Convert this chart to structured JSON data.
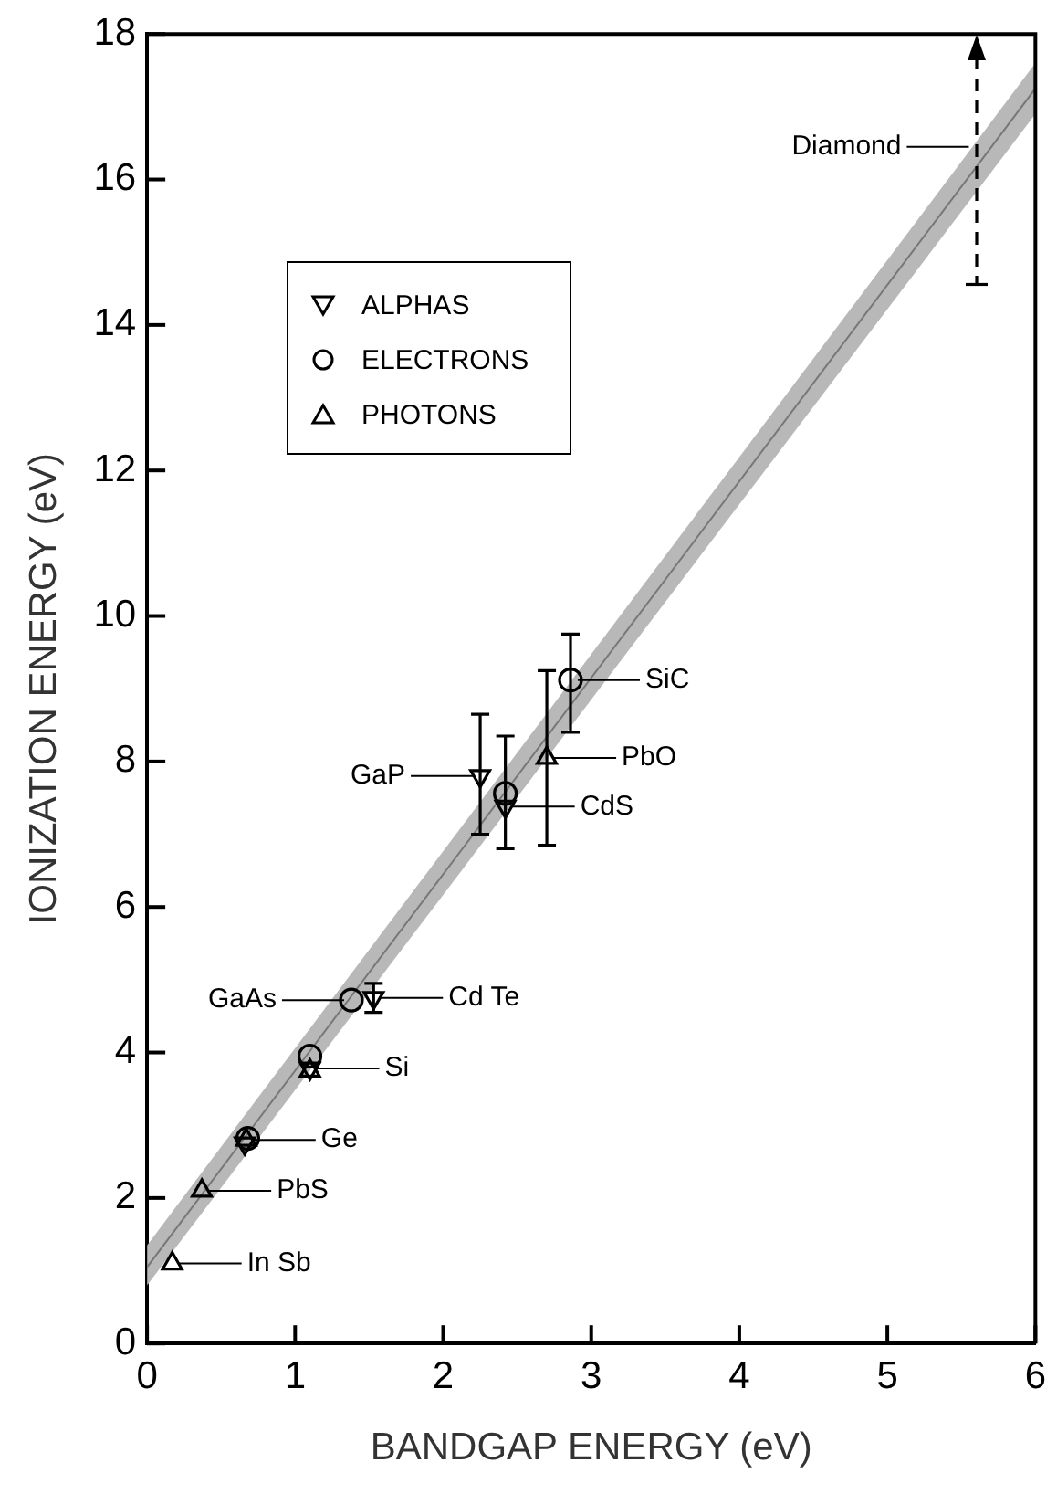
{
  "chart_data": {
    "type": "scatter",
    "xlabel": "BANDGAP ENERGY (eV)",
    "ylabel": "IONIZATION ENERGY (eV)",
    "xlim": [
      0,
      6
    ],
    "xticks": [
      0,
      1,
      2,
      3,
      4,
      5,
      6
    ],
    "ylim": [
      0,
      18
    ],
    "yticks": [
      0,
      2,
      4,
      6,
      8,
      10,
      12,
      14,
      16,
      18
    ],
    "grid": false,
    "legend": "top left",
    "series": [
      {
        "name": "ALPHAS",
        "color": "#000000",
        "x": [
          0.66,
          1.1,
          1.53,
          2.25,
          2.42
        ],
        "values": [
          2.75,
          3.78,
          4.75,
          7.8,
          7.38
        ],
        "errors": [
          null,
          null,
          0.2,
          [
            7.0,
            8.65
          ],
          null
        ]
      },
      {
        "name": "ELECTRONS",
        "marker": "circle",
        "color": "#000000",
        "x": [
          0.68,
          1.1,
          1.38,
          2.42,
          2.86
        ],
        "values": [
          2.82,
          3.95,
          4.72,
          7.56,
          9.12
        ],
        "errors": [
          null,
          null,
          null,
          [
            6.8,
            8.35
          ],
          [
            8.4,
            9.75
          ]
        ]
      },
      {
        "name": "PHOTONS",
        "marker": "triangle",
        "color": "#000000",
        "x": [
          0.17,
          0.37,
          0.67,
          1.1,
          2.7
        ],
        "values": [
          1.1,
          2.1,
          2.8,
          3.75,
          8.05
        ],
        "errors": [
          null,
          null,
          null,
          null,
          [
            6.85,
            9.25
          ]
        ]
      },
      {
        "type": "line",
        "marker": "none",
        "color": "#777777",
        "x": [
          0,
          6
        ],
        "values": [
          1.05,
          17.25
        ],
        "lower": [
          0.8,
          16.9
        ],
        "upper": [
          1.35,
          17.6
        ]
      }
    ],
    "annotations": [
      {
        "text": "Diamond",
        "x": 5.6,
        "y": 16.45
      },
      {
        "text": "SiC",
        "x": 2.86,
        "y": 9.12
      },
      {
        "text": "PbO",
        "x": 2.7,
        "y": 8.05
      },
      {
        "text": "CdS",
        "x": 2.42,
        "y": 7.38
      },
      {
        "text": "GaP",
        "x": 2.25,
        "y": 7.8
      },
      {
        "text": "GaAs",
        "x": 1.38,
        "y": 4.72
      },
      {
        "text": "Cd Te",
        "x": 1.53,
        "y": 4.75
      },
      {
        "text": "Si",
        "x": 1.1,
        "y": 3.78
      },
      {
        "text": "Ge",
        "x": 0.67,
        "y": 2.8
      },
      {
        "text": "PbS",
        "x": 0.37,
        "y": 2.1
      },
      {
        "text": "In Sb",
        "x": 0.17,
        "y": 1.1
      }
    ]
  }
}
